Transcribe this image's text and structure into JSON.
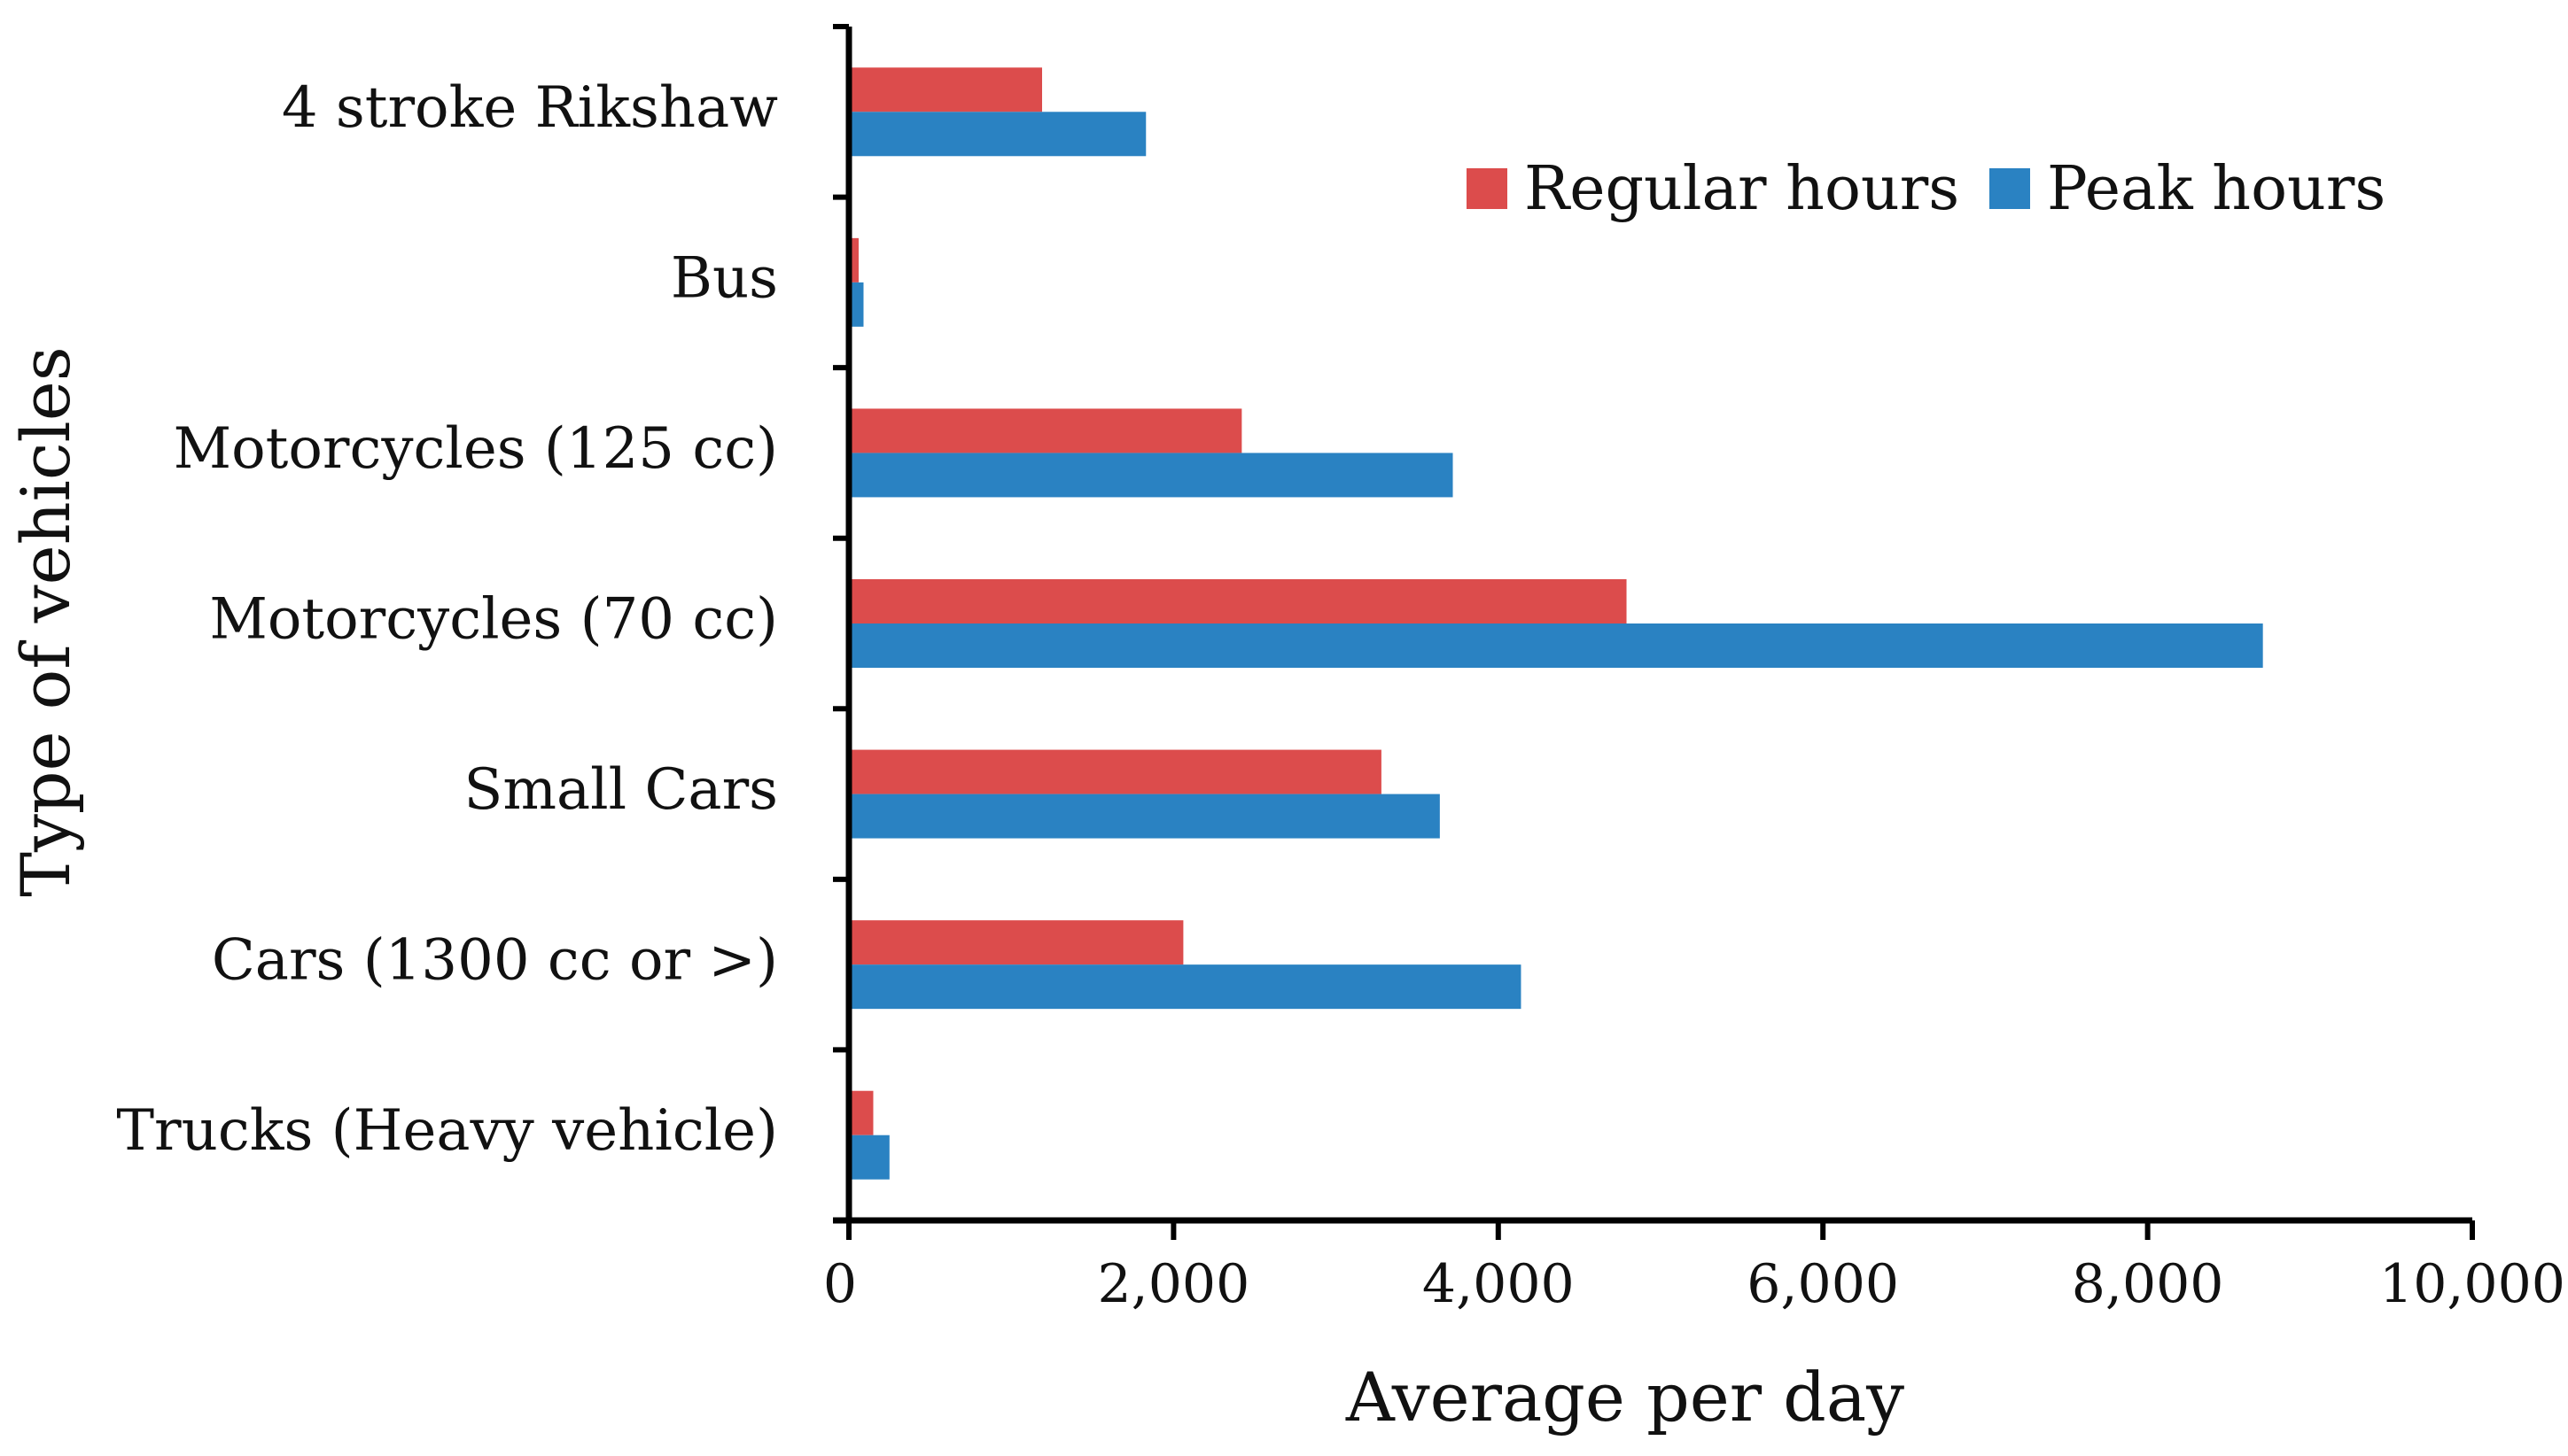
{
  "chart_data": {
    "type": "bar",
    "orientation": "horizontal",
    "categories": [
      "4 stroke Rikshaw",
      "Bus",
      "Motorcycles (125 cc)",
      "Motorcycles (70 cc)",
      "Small Cars",
      "Cars (1300 cc or >)",
      "Trucks (Heavy vehicle)"
    ],
    "series": [
      {
        "name": "Regular hours",
        "color": "#dc4c4c",
        "values": [
          1190,
          60,
          2420,
          4790,
          3280,
          2060,
          150
        ]
      },
      {
        "name": "Peak hours",
        "color": "#2a82c2",
        "values": [
          1830,
          90,
          3720,
          8710,
          3640,
          4140,
          250
        ]
      }
    ],
    "xlabel": "Average per day",
    "ylabel": "Type of vehicles",
    "xlim": [
      0,
      10000
    ],
    "xticks": [
      0,
      2000,
      4000,
      6000,
      8000,
      10000
    ],
    "xtick_labels": [
      "0",
      "2,000",
      "4,000",
      "6,000",
      "8,000",
      "10,000"
    ],
    "grid": false,
    "legend_position": "top-right"
  }
}
